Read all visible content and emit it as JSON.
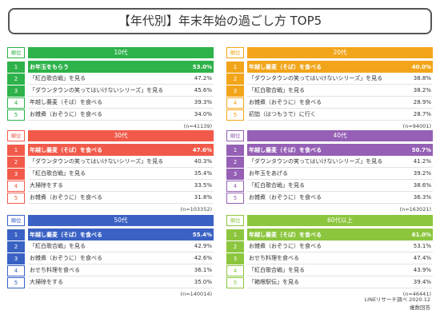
{
  "title": "【年代別】年末年始の過ごし方 TOP5",
  "rank_header": "順位",
  "chart_data": {
    "type": "table",
    "title": "【年代別】年末年始の過ごし方 TOP5",
    "unit": "%",
    "panels": [
      {
        "age": "10代",
        "sample": "(n=41139)",
        "color": "#2eb24a",
        "light": "#ffffff",
        "items": [
          {
            "rank": "1",
            "label": "お年玉をもらう",
            "value": "53.0%"
          },
          {
            "rank": "2",
            "label": "「紅白歌合戦」を見る",
            "value": "47.2%"
          },
          {
            "rank": "3",
            "label": "「ダウンタウンの笑ってはいけないシリーズ」を見る",
            "value": "45.6%"
          },
          {
            "rank": "4",
            "label": "年越し蕎麦（そば）を食べる",
            "value": "39.3%"
          },
          {
            "rank": "5",
            "label": "お雑煮（おぞうに）を食べる",
            "value": "34.0%"
          }
        ]
      },
      {
        "age": "20代",
        "sample": "(n=94001)",
        "color": "#f2a51a",
        "light": "#ffffff",
        "items": [
          {
            "rank": "1",
            "label": "年越し蕎麦（そば）を食べる",
            "value": "40.0%"
          },
          {
            "rank": "2",
            "label": "「ダウンタウンの笑ってはいけないシリーズ」を見る",
            "value": "38.8%"
          },
          {
            "rank": "3",
            "label": "「紅白歌合戦」を見る",
            "value": "38.2%"
          },
          {
            "rank": "4",
            "label": "お雑煮（おぞうに）を食べる",
            "value": "28.9%"
          },
          {
            "rank": "5",
            "label": "初詣（はつもうで）に行く",
            "value": "28.7%"
          }
        ]
      },
      {
        "age": "30代",
        "sample": "(n=103352)",
        "color": "#f15a4a",
        "light": "#ffffff",
        "items": [
          {
            "rank": "1",
            "label": "年越し蕎麦（そば）を食べる",
            "value": "47.6%"
          },
          {
            "rank": "2",
            "label": "「ダウンタウンの笑ってはいけないシリーズ」を見る",
            "value": "40.3%"
          },
          {
            "rank": "3",
            "label": "「紅白歌合戦」を見る",
            "value": "35.4%"
          },
          {
            "rank": "4",
            "label": "大掃除をする",
            "value": "33.5%"
          },
          {
            "rank": "5",
            "label": "お雑煮（おぞうに）を食べる",
            "value": "31.8%"
          }
        ]
      },
      {
        "age": "40代",
        "sample": "(n=163021)",
        "color": "#9560b5",
        "light": "#ffffff",
        "items": [
          {
            "rank": "1",
            "label": "年越し蕎麦（そば）を食べる",
            "value": "50.7%"
          },
          {
            "rank": "2",
            "label": "「ダウンタウンの笑ってはいけないシリーズ」を見る",
            "value": "41.2%"
          },
          {
            "rank": "3",
            "label": "お年玉をあげる",
            "value": "39.2%"
          },
          {
            "rank": "4",
            "label": "「紅白歌合戦」を見る",
            "value": "38.6%"
          },
          {
            "rank": "5",
            "label": "お雑煮（おぞうに）を食べる",
            "value": "36.3%"
          }
        ]
      },
      {
        "age": "50代",
        "sample": "(n=140014)",
        "color": "#3a62c4",
        "light": "#ffffff",
        "items": [
          {
            "rank": "1",
            "label": "年越し蕎麦（そば）を食べる",
            "value": "55.4%"
          },
          {
            "rank": "2",
            "label": "「紅白歌合戦」を見る",
            "value": "42.9%"
          },
          {
            "rank": "3",
            "label": "お雑煮（おぞうに）を食べる",
            "value": "42.6%"
          },
          {
            "rank": "4",
            "label": "おせち料理を食べる",
            "value": "36.1%"
          },
          {
            "rank": "5",
            "label": "大掃除をする",
            "value": "35.0%"
          }
        ]
      },
      {
        "age": "60代以上",
        "sample": "(n=46441)",
        "color": "#8cc63e",
        "light": "#ffffff",
        "items": [
          {
            "rank": "1",
            "label": "年越し蕎麦（そば）を食べる",
            "value": "61.0%"
          },
          {
            "rank": "2",
            "label": "お雑煮（おぞうに）を食べる",
            "value": "53.1%"
          },
          {
            "rank": "3",
            "label": "おせち料理を食べる",
            "value": "47.4%"
          },
          {
            "rank": "4",
            "label": "「紅白歌合戦」を見る",
            "value": "43.9%"
          },
          {
            "rank": "5",
            "label": "「箱根駅伝」を見る",
            "value": "39.4%"
          }
        ]
      }
    ]
  },
  "source_line1": "LINEリサーチ調べ 2020.12",
  "source_line2": "複数回答"
}
